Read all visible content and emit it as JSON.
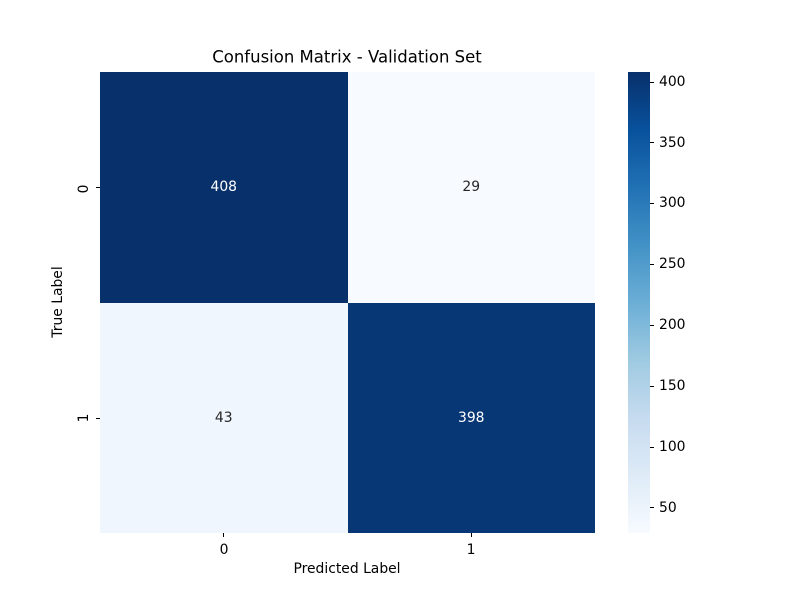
{
  "chart_data": {
    "type": "heatmap",
    "title": "Confusion Matrix - Validation Set",
    "xlabel": "Predicted Label",
    "ylabel": "True Label",
    "x_tick_labels": [
      "0",
      "1"
    ],
    "y_tick_labels": [
      "0",
      "1"
    ],
    "matrix": [
      [
        408,
        29
      ],
      [
        43,
        398
      ]
    ],
    "vmin": 29,
    "vmax": 408,
    "colormap": "Blues",
    "colormap_stops": [
      "#f7fbff",
      "#deebf7",
      "#c6dbef",
      "#9ecae1",
      "#6baed6",
      "#4292c6",
      "#2171b5",
      "#08519c",
      "#08306b"
    ],
    "colorbar_ticks": [
      "50",
      "100",
      "150",
      "200",
      "250",
      "300",
      "350",
      "400"
    ],
    "colorbar_position": "right",
    "grid": false,
    "background": "#ffffff"
  },
  "colors": {
    "cell_0_0": "#08306b",
    "cell_0_1": "#f7fbff",
    "cell_1_0": "#f0f6fd",
    "cell_1_1": "#083775",
    "annot_on_dark": "#ffffff",
    "annot_on_light": "#262626",
    "text": "#000000"
  }
}
